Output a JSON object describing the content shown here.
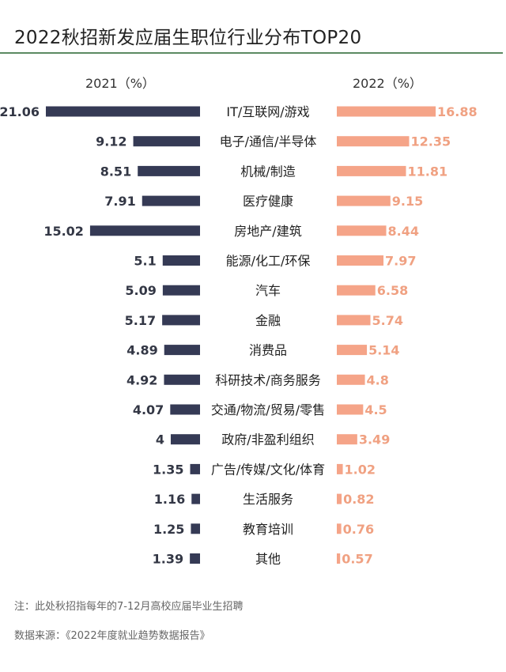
{
  "chart_data": {
    "type": "bar",
    "title": "2022秋招新发应届生职位行业分布TOP20",
    "series": [
      {
        "name": "2021（%）",
        "color": "#353a55",
        "values": [
          21.06,
          9.12,
          8.51,
          7.91,
          15.02,
          5.1,
          5.09,
          5.17,
          4.89,
          4.92,
          4.07,
          4,
          1.35,
          1.16,
          1.25,
          1.39
        ],
        "value_labels": [
          "21.06",
          "9.12",
          "8.51",
          "7.91",
          "15.02",
          "5.1",
          "5.09",
          "5.17",
          "4.89",
          "4.92",
          "4.07",
          "4",
          "1.35",
          "1.16",
          "1.25",
          "1.39"
        ]
      },
      {
        "name": "2022（%）",
        "color": "#f5a488",
        "values": [
          16.88,
          12.35,
          11.81,
          9.15,
          8.44,
          7.97,
          6.58,
          5.74,
          5.14,
          4.8,
          4.5,
          3.49,
          1.02,
          0.82,
          0.76,
          0.57
        ],
        "value_labels": [
          "16.88",
          "12.35",
          "11.81",
          "9.15",
          "8.44",
          "7.97",
          "6.58",
          "5.74",
          "5.14",
          "4.8",
          "4.5",
          "3.49",
          "1.02",
          "0.82",
          "0.76",
          "0.57"
        ]
      }
    ],
    "categories": [
      "IT/互联网/游戏",
      "电子/通信/半导体",
      "机械/制造",
      "医疗健康",
      "房地产/建筑",
      "能源/化工/环保",
      "汽车",
      "金融",
      "消费品",
      "科研技术/商务服务",
      "交通/物流/贸易/零售",
      "政府/非盈利组织",
      "广告/传媒/文化/体育",
      "生活服务",
      "教育培训",
      "其他"
    ],
    "xlabel": "",
    "ylabel": "",
    "xlim": [
      0,
      21.06
    ],
    "legend_position": "top",
    "grid": false
  },
  "notes": {
    "footnote": "注：此处秋招指每年的7-12月高校应届毕业生招聘",
    "source": "数据来源：《2022年度就业趋势数据报告》"
  }
}
